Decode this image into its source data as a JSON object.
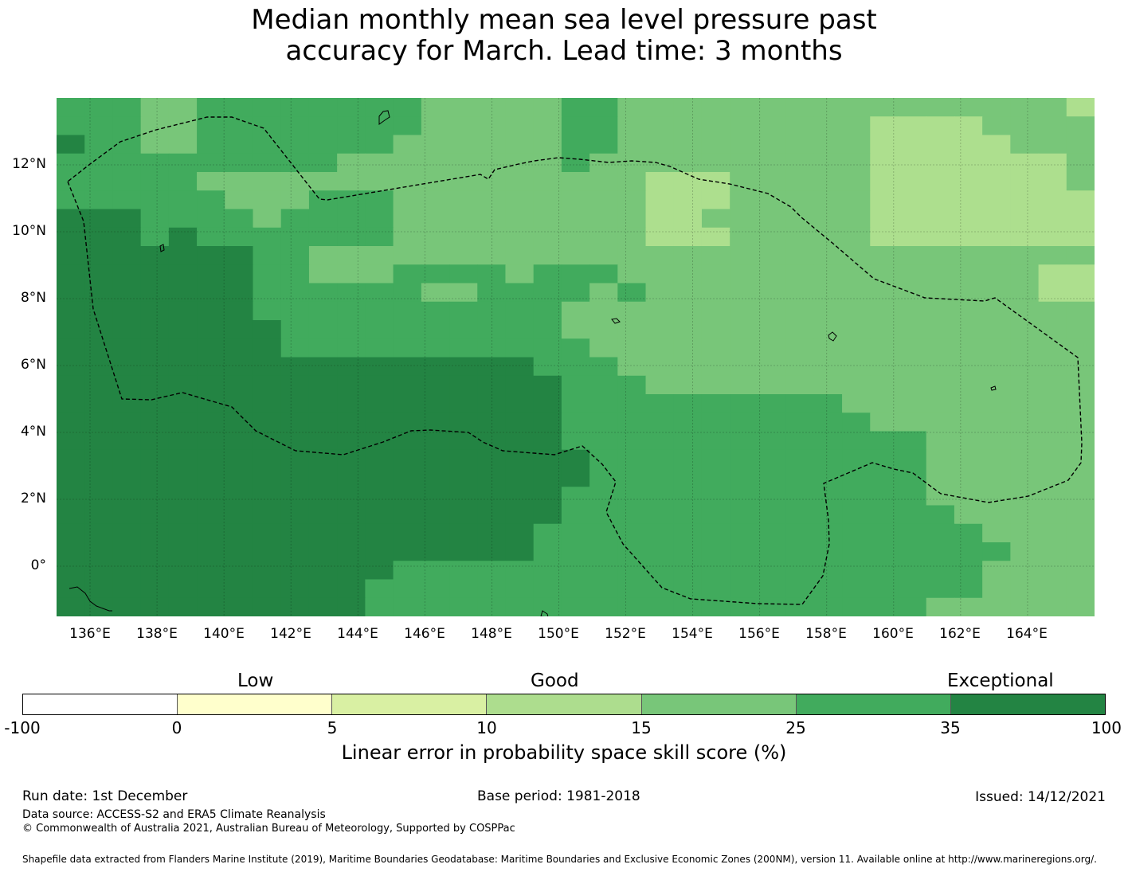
{
  "title": {
    "line1": "Median monthly mean sea level pressure past",
    "line2": "accuracy for March. Lead time: 3 months"
  },
  "map": {
    "x_ticks": [
      "136°E",
      "138°E",
      "140°E",
      "142°E",
      "144°E",
      "146°E",
      "148°E",
      "150°E",
      "152°E",
      "154°E",
      "156°E",
      "158°E",
      "160°E",
      "162°E",
      "164°E"
    ],
    "y_ticks": [
      "12°N",
      "10°N",
      "8°N",
      "6°N",
      "4°N",
      "2°N",
      "0°"
    ],
    "lon_range": [
      135,
      166
    ],
    "lat_range": [
      -1.5,
      14
    ],
    "grid_rows_lat_top_to_bottom": "approx. 0.56 degree cells, 28 rows x 37 cols",
    "colors": {
      "c10_15": "#addf8e",
      "c15_25": "#78c679",
      "c25_35": "#41ab5d",
      "c35_100": "#238443"
    }
  },
  "colorbar": {
    "category_low": "Low",
    "category_good": "Good",
    "category_exceptional": "Exceptional",
    "ticks": [
      "-100",
      "0",
      "5",
      "10",
      "15",
      "25",
      "35",
      "100"
    ],
    "colors": [
      "#ffffff",
      "#ffffcc",
      "#d9f0a3",
      "#addd8e",
      "#78c679",
      "#41ab5d",
      "#238443"
    ],
    "label": "Linear error in probability space skill score (%)"
  },
  "footer": {
    "run_date": "Run date: 1st December",
    "base_period": "Base period: 1981-2018",
    "issued": "Issued: 14/12/2021",
    "data_source": "Data source: ACCESS-S2 and ERA5 Climate Reanalysis",
    "copyright": "© Commonwealth of Australia 2021, Australian Bureau of Meteorology, Supported by COSPPac",
    "shapefile": "Shapefile data extracted from Flanders Marine Institute (2019), Maritime Boundaries Geodatabase: Maritime Boundaries and Exclusive Economic Zones (200NM), version 11. Available online at http://www.marineregions.org/."
  }
}
